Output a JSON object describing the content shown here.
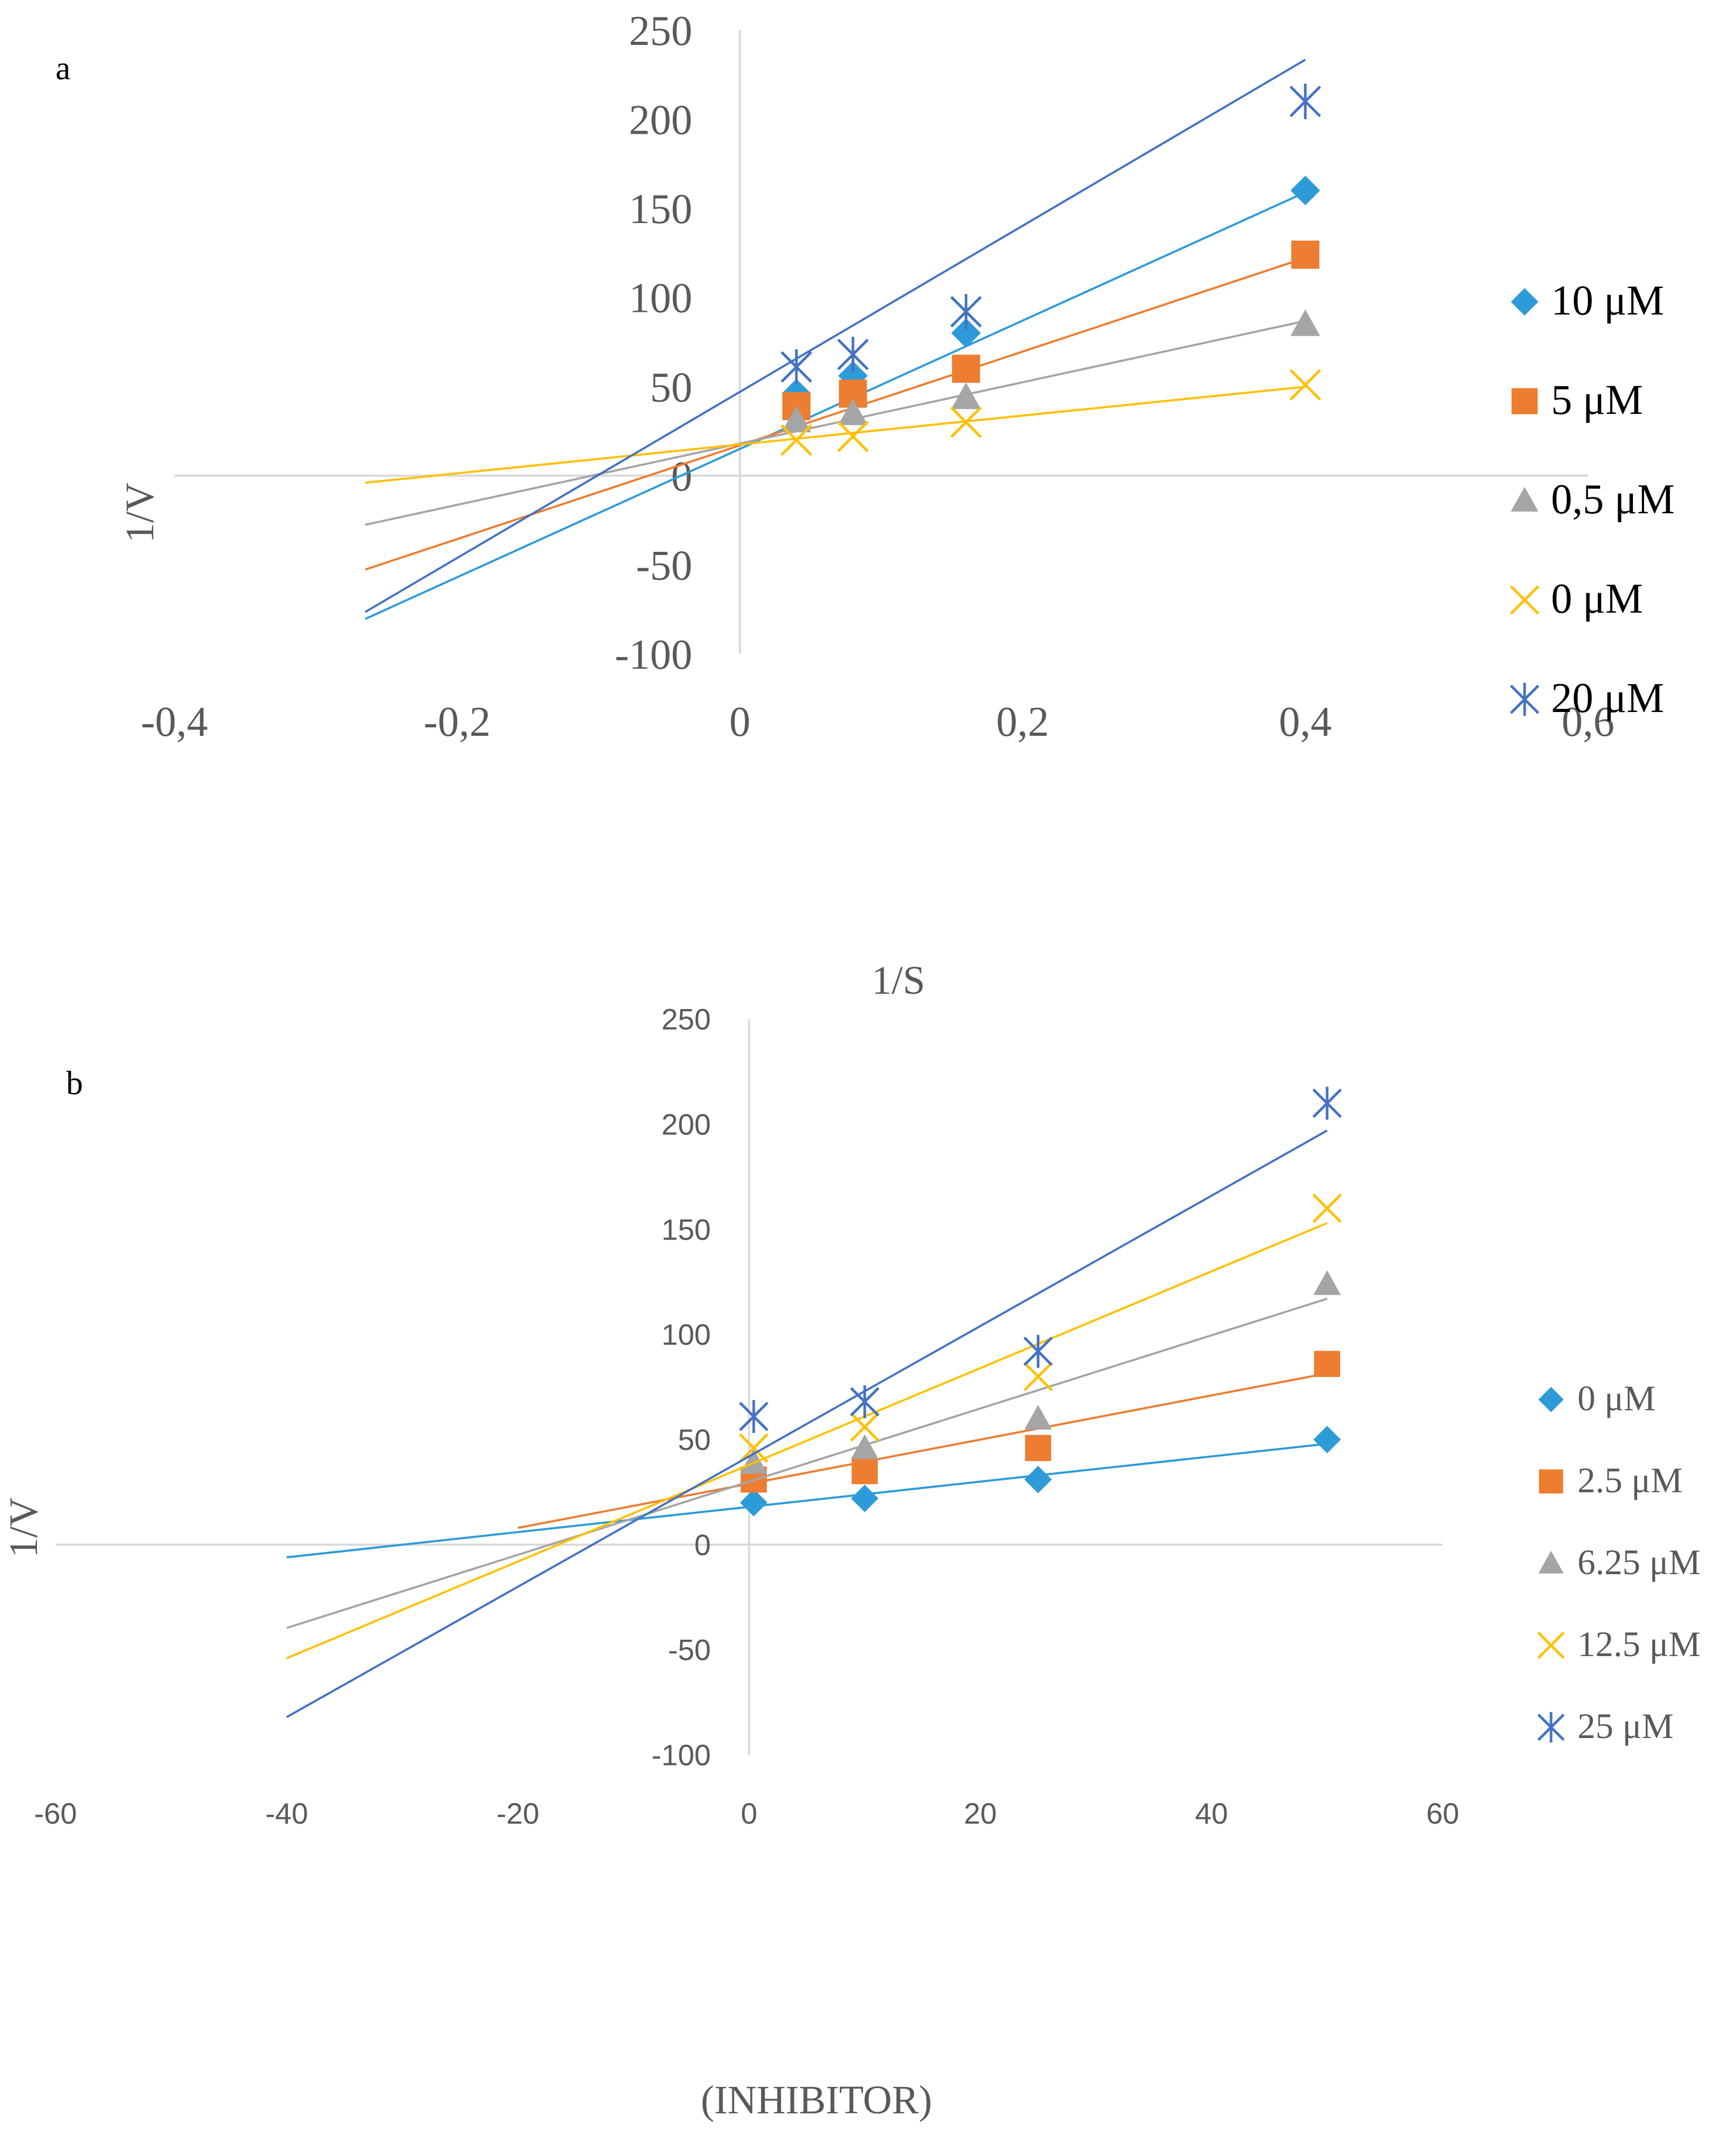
{
  "chart_data": [
    {
      "panel": "a",
      "type": "scatter",
      "xlabel": "1/S",
      "ylabel": "1/V",
      "xlim": [
        -0.4,
        0.6
      ],
      "ylim": [
        -100,
        250
      ],
      "x_ticks": [
        "-0,4",
        "-0,2",
        "0",
        "0,2",
        "0,4",
        "0,6"
      ],
      "y_ticks": [
        "-100",
        "-50",
        "0",
        "50",
        "100",
        "150",
        "200",
        "250"
      ],
      "legend": "right",
      "series": [
        {
          "name": "10 μM",
          "marker": "diamond",
          "color": "#2e9bd9",
          "x": [
            0.04,
            0.08,
            0.16,
            0.4
          ],
          "y": [
            46,
            56,
            80,
            160
          ],
          "fit": {
            "slope": 360,
            "intercept": 15,
            "x_range": [
              -0.265,
              0.4
            ]
          }
        },
        {
          "name": "5   μM",
          "marker": "square",
          "color": "#ed7d31",
          "x": [
            0.04,
            0.08,
            0.16,
            0.4
          ],
          "y": [
            39,
            46,
            60,
            124
          ],
          "fit": {
            "slope": 263,
            "intercept": 17,
            "x_range": [
              -0.265,
              0.4
            ]
          }
        },
        {
          "name": "0,5 μM",
          "marker": "triangle",
          "color": "#a5a5a5",
          "x": [
            0.04,
            0.08,
            0.16,
            0.4
          ],
          "y": [
            31,
            35,
            44,
            85
          ],
          "fit": {
            "slope": 172,
            "intercept": 18,
            "x_range": [
              -0.265,
              0.4
            ]
          }
        },
        {
          "name": "0   μM",
          "marker": "x",
          "color": "#ffc000",
          "x": [
            0.04,
            0.08,
            0.16,
            0.4
          ],
          "y": [
            20,
            22,
            30,
            51
          ],
          "fit": {
            "slope": 81,
            "intercept": 17.5,
            "x_range": [
              -0.265,
              0.4
            ]
          }
        },
        {
          "name": "20 μM",
          "marker": "asterisk",
          "color": "#4472c4",
          "x": [
            0.04,
            0.08,
            0.16,
            0.4
          ],
          "y": [
            61,
            68,
            92,
            210
          ],
          "fit": {
            "slope": 466,
            "intercept": 47,
            "x_range": [
              -0.265,
              0.4
            ]
          }
        }
      ]
    },
    {
      "panel": "b",
      "type": "scatter",
      "xlabel": "(INHIBITOR)",
      "ylabel": "1/V",
      "xlim": [
        -60,
        60
      ],
      "ylim": [
        -100,
        250
      ],
      "x_ticks": [
        "-60",
        "-40",
        "-20",
        "0",
        "20",
        "40",
        "60"
      ],
      "y_ticks": [
        "-100",
        "-50",
        "0",
        "50",
        "100",
        "150",
        "200",
        "250"
      ],
      "legend": "right",
      "series": [
        {
          "name": "0 μM",
          "marker": "diamond",
          "color": "#2e9bd9",
          "x": [
            0.4,
            10,
            25,
            50
          ],
          "y": [
            20,
            22,
            31,
            50
          ],
          "fit": {
            "slope": 0.6,
            "intercept": 18,
            "x_range": [
              -40,
              50
            ]
          }
        },
        {
          "name": "2.5 μM",
          "marker": "square",
          "color": "#ed7d31",
          "x": [
            0.4,
            10,
            25,
            50
          ],
          "y": [
            31,
            35,
            46,
            86
          ],
          "fit": {
            "slope": 1.05,
            "intercept": 29,
            "x_range": [
              -20,
              50
            ]
          }
        },
        {
          "name": "6.25 μM",
          "marker": "triangle",
          "color": "#a5a5a5",
          "x": [
            0.4,
            10,
            25,
            50
          ],
          "y": [
            39,
            46,
            60,
            124
          ],
          "fit": {
            "slope": 1.74,
            "intercept": 30,
            "x_range": [
              -40,
              50
            ]
          }
        },
        {
          "name": "12.5 μM",
          "marker": "x",
          "color": "#ffc000",
          "x": [
            0.4,
            10,
            25,
            50
          ],
          "y": [
            46,
            56,
            80,
            160
          ],
          "fit": {
            "slope": 2.3,
            "intercept": 38,
            "x_range": [
              -40,
              50
            ]
          }
        },
        {
          "name": "25 μM",
          "marker": "asterisk",
          "color": "#4472c4",
          "x": [
            0.4,
            10,
            25,
            50
          ],
          "y": [
            61,
            68,
            92,
            210
          ],
          "fit": {
            "slope": 3.1,
            "intercept": 42,
            "x_range": [
              -40,
              50
            ]
          }
        }
      ]
    }
  ],
  "panel_labels": [
    "a",
    "b"
  ]
}
